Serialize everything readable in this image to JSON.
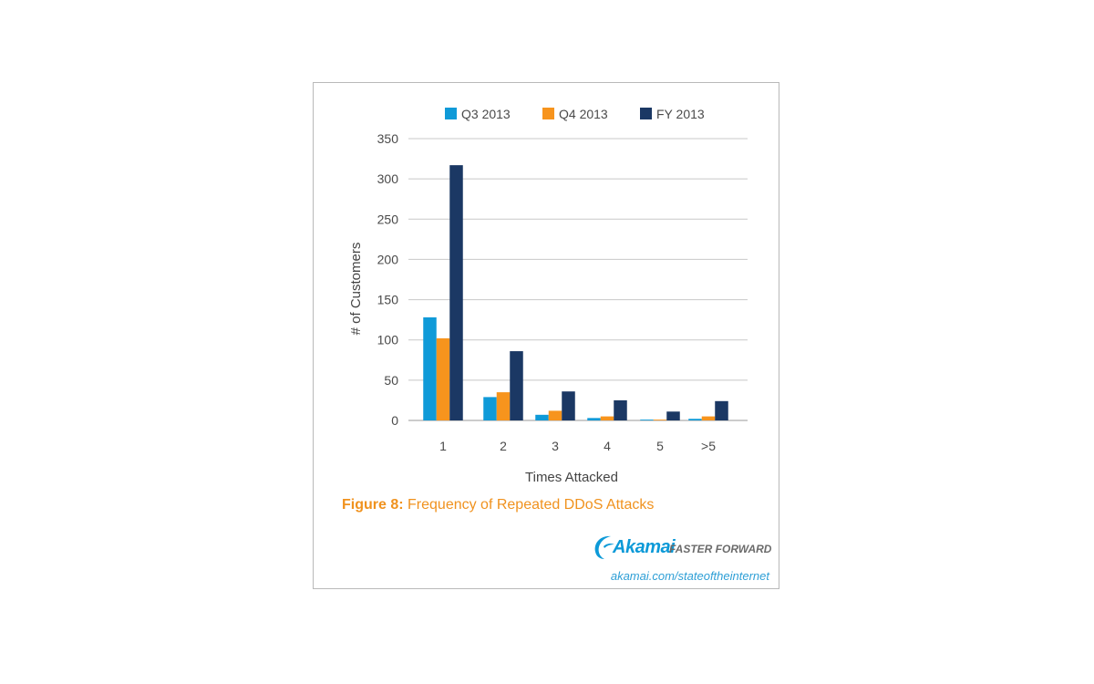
{
  "chart_data": {
    "type": "bar",
    "title": "",
    "xlabel": "Times Attacked",
    "ylabel": "# of Customers",
    "ylim": [
      0,
      350
    ],
    "yticks": [
      0,
      50,
      100,
      150,
      200,
      250,
      300,
      350
    ],
    "categories": [
      "1",
      "2",
      "3",
      "4",
      "5",
      ">5"
    ],
    "series": [
      {
        "name": "Q3 2013",
        "color": "#0f9ad8",
        "values": [
          128,
          29,
          7,
          3,
          1,
          2
        ]
      },
      {
        "name": "Q4 2013",
        "color": "#f7941d",
        "values": [
          102,
          35,
          12,
          5,
          1,
          5
        ]
      },
      {
        "name": "FY 2013",
        "color": "#1b3864",
        "values": [
          317,
          86,
          36,
          25,
          11,
          24
        ]
      }
    ],
    "grid": true,
    "legend": "top-center"
  },
  "caption": {
    "label": "Figure 8:",
    "text": "Frequency of Repeated DDoS Attacks"
  },
  "footer": {
    "brand": "Akamai",
    "tagline": "FASTER FORWARD",
    "url": "akamai.com/stateoftheinternet"
  }
}
